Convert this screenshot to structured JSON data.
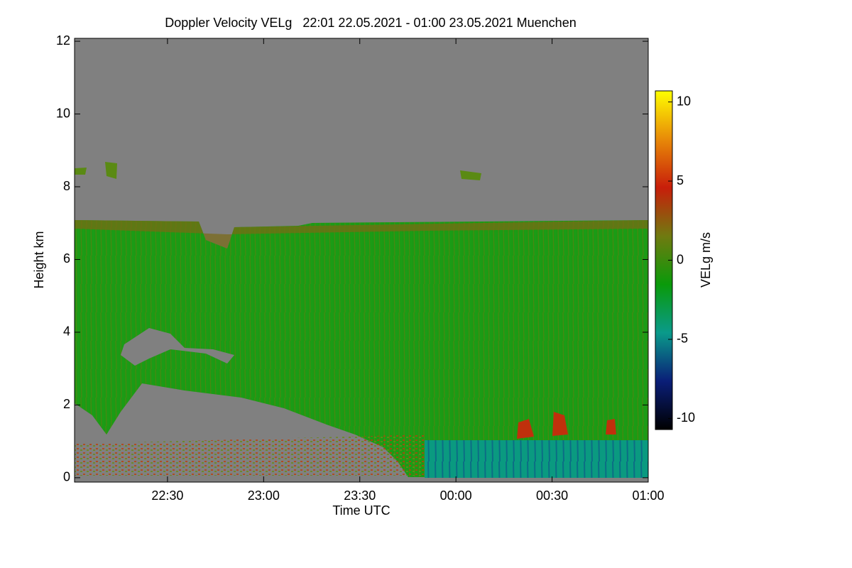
{
  "chart_data": {
    "type": "heatmap",
    "title": "Doppler Velocity VELg   22:01 22.05.2021 - 01:00 23.05.2021 Muenchen",
    "x_label": "Time UTC",
    "y_label": "Height km",
    "colorbar_label": "VELg m/s",
    "xlim": [
      22.0167,
      25.0
    ],
    "xticks": [
      {
        "value": 22.5,
        "label": "22:30"
      },
      {
        "value": 23.0,
        "label": "23:00"
      },
      {
        "value": 23.5,
        "label": "23:30"
      },
      {
        "value": 24.0,
        "label": "00:00"
      },
      {
        "value": 24.5,
        "label": "00:30"
      },
      {
        "value": 25.0,
        "label": "01:00"
      }
    ],
    "ylim": [
      -0.12,
      12.08
    ],
    "yticks": [
      0,
      2,
      4,
      6,
      8,
      10,
      12
    ],
    "clim": [
      -10.7,
      10.7
    ],
    "cticks": [
      -10,
      -5,
      0,
      5,
      10
    ],
    "colorscale": [
      "#000000",
      "#0a1e78",
      "#0a9a8a",
      "#0a9a0a",
      "#707a10",
      "#c81e0a",
      "#e88a08",
      "#ffff00"
    ],
    "no_data_color": "#808080"
  }
}
